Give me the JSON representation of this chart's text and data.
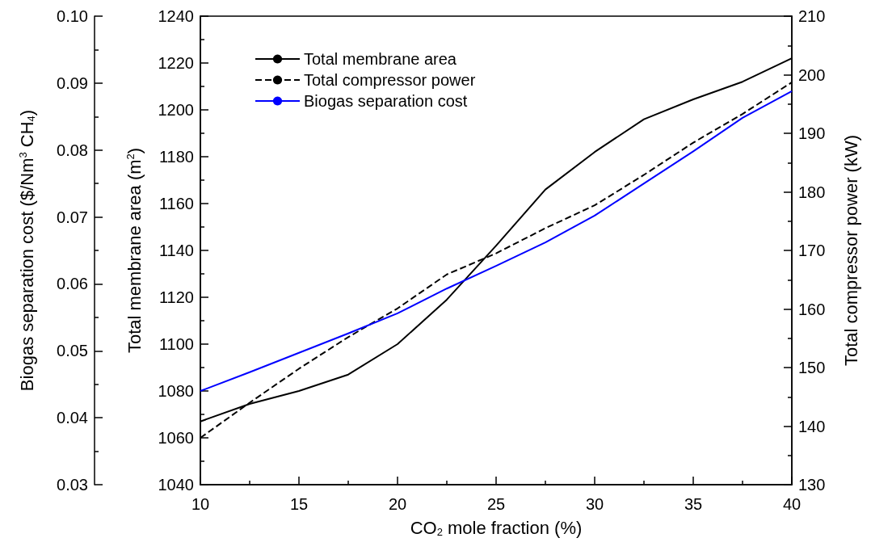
{
  "chart_data": {
    "type": "line",
    "xlabel": "CO$_{2}$ mole fraction (%)",
    "ylabel": "Total membrane area (m$^{2}$)",
    "y2label": "Total compressor power (kW)",
    "y3label": "Biogas separation cost ($/Nm$^{3}$ CH$_{4}$)",
    "x": [
      10,
      12.5,
      15,
      17.5,
      20,
      22.5,
      25,
      27.5,
      30,
      32.5,
      35,
      37.5,
      40
    ],
    "xlim": [
      10,
      40
    ],
    "xticks": [
      10,
      15,
      20,
      25,
      30,
      35,
      40
    ],
    "ylim": [
      1040,
      1240
    ],
    "yticks": [
      1040,
      1060,
      1080,
      1100,
      1120,
      1140,
      1160,
      1180,
      1200,
      1220,
      1240
    ],
    "y2lim": [
      130,
      210
    ],
    "y2ticks": [
      130,
      140,
      150,
      160,
      170,
      180,
      190,
      200,
      210
    ],
    "y3lim": [
      0.03,
      0.1
    ],
    "y3ticks": [
      0.03,
      0.04,
      0.05,
      0.06,
      0.07,
      0.08,
      0.09,
      {
        "value": 0.1,
        "label": "0.10"
      }
    ],
    "legend": "top left",
    "grid": false,
    "marker": "none",
    "series": [
      {
        "name": "Total membrane area",
        "color": "#000000",
        "line_style": "solid",
        "axis": "y",
        "values": [
          1067,
          1074.5,
          1080,
          1087,
          1100,
          1119,
          1142,
          1166,
          1182,
          1196,
          1204.5,
          1212,
          1222
        ]
      },
      {
        "name": "Total compressor power",
        "color": "#000000",
        "line_style": "dashed",
        "axis": "y2",
        "values": [
          138,
          144,
          149.8,
          155.2,
          160.1,
          165.9,
          169.5,
          173.8,
          177.7,
          182.9,
          188.4,
          193.3,
          198.7
        ]
      },
      {
        "name": "Biogas separation cost",
        "color": "#0000ff",
        "line_style": "solid",
        "axis": "y3",
        "values": [
          0.044,
          0.0468,
          0.0497,
          0.0526,
          0.0556,
          0.0593,
          0.0627,
          0.0662,
          0.0702,
          0.075,
          0.0798,
          0.0848,
          0.0888
        ]
      }
    ]
  }
}
